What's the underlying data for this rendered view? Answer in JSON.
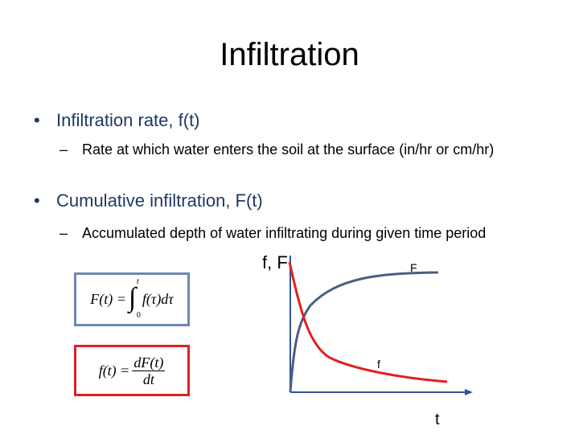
{
  "slide": {
    "title": "Infiltration",
    "bullet_symbol": "•",
    "dash_symbol": "–",
    "bullets": [
      {
        "label": "Infiltration rate, f(t)",
        "sub": "Rate at which water enters the soil at the surface (in/hr or cm/hr)"
      },
      {
        "label": "Cumulative infiltration, F(t)",
        "sub": "Accumulated depth of water infiltrating during given time period"
      }
    ]
  },
  "equations": {
    "cumulative": {
      "lhs": "F(t) =",
      "upper": "t",
      "lower": "0",
      "integrand": "f(τ)dτ",
      "integral_symbol": "∫"
    },
    "rate": {
      "lhs": "f(t) =",
      "numerator": "dF(t)",
      "denominator": "dt"
    }
  },
  "graph": {
    "y_axis_label": "f, F",
    "x_axis_label": "t",
    "curve_F_label": "F",
    "curve_f_label": "f",
    "colors": {
      "axis": "#2f5597",
      "curve_F": "#4a5f80",
      "curve_f": "#e02020",
      "box_cumulative": "#6e87b5",
      "box_rate": "#e02020"
    }
  }
}
